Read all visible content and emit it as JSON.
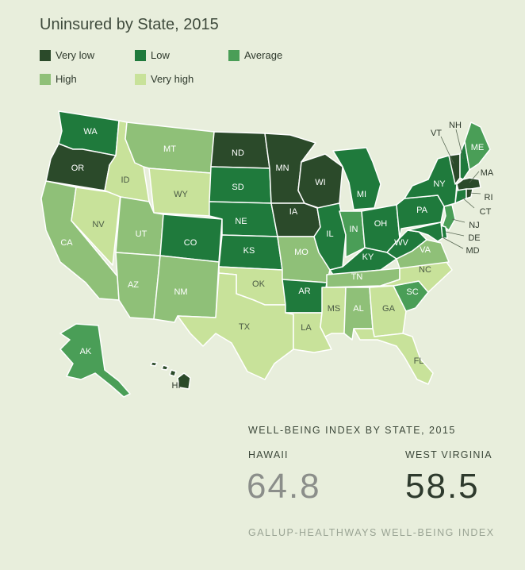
{
  "title": "Uninsured by State, 2015",
  "legend": [
    {
      "key": "very_low",
      "label": "Very low",
      "color": "#2b4a2a"
    },
    {
      "key": "low",
      "label": "Low",
      "color": "#1f7a3c"
    },
    {
      "key": "average",
      "label": "Average",
      "color": "#4a9e57"
    },
    {
      "key": "high",
      "label": "High",
      "color": "#8fc078"
    },
    {
      "key": "very_high",
      "label": "Very high",
      "color": "#c8e29a"
    }
  ],
  "states": {
    "WA": "low",
    "OR": "very_low",
    "CA": "high",
    "NV": "very_high",
    "ID": "very_high",
    "MT": "high",
    "WY": "very_high",
    "UT": "high",
    "AZ": "high",
    "CO": "low",
    "NM": "high",
    "ND": "very_low",
    "SD": "low",
    "NE": "low",
    "KS": "low",
    "OK": "very_high",
    "TX": "very_high",
    "MN": "very_low",
    "IA": "very_low",
    "MO": "high",
    "AR": "low",
    "LA": "very_high",
    "WI": "very_low",
    "IL": "low",
    "MI": "low",
    "IN": "average",
    "OH": "low",
    "KY": "low",
    "TN": "high",
    "MS": "very_high",
    "AL": "high",
    "GA": "very_high",
    "FL": "very_high",
    "SC": "average",
    "NC": "very_high",
    "VA": "high",
    "WV": "low",
    "PA": "low",
    "NY": "low",
    "VT": "very_low",
    "NH": "low",
    "ME": "average",
    "MA": "very_low",
    "RI": "very_low",
    "CT": "low",
    "NJ": "average",
    "DE": "low",
    "MD": "low",
    "AK": "average",
    "HI": "very_low"
  },
  "wellbeing": {
    "heading": "WELL-BEING INDEX BY STATE, 2015",
    "best": {
      "state": "HAWAII",
      "value": "64.8",
      "color": "#8b8e8a"
    },
    "worst": {
      "state": "WEST VIRGINIA",
      "value": "58.5",
      "color": "#2e3a2d"
    },
    "source": "GALLUP-HEALTHWAYS WELL-BEING INDEX"
  }
}
